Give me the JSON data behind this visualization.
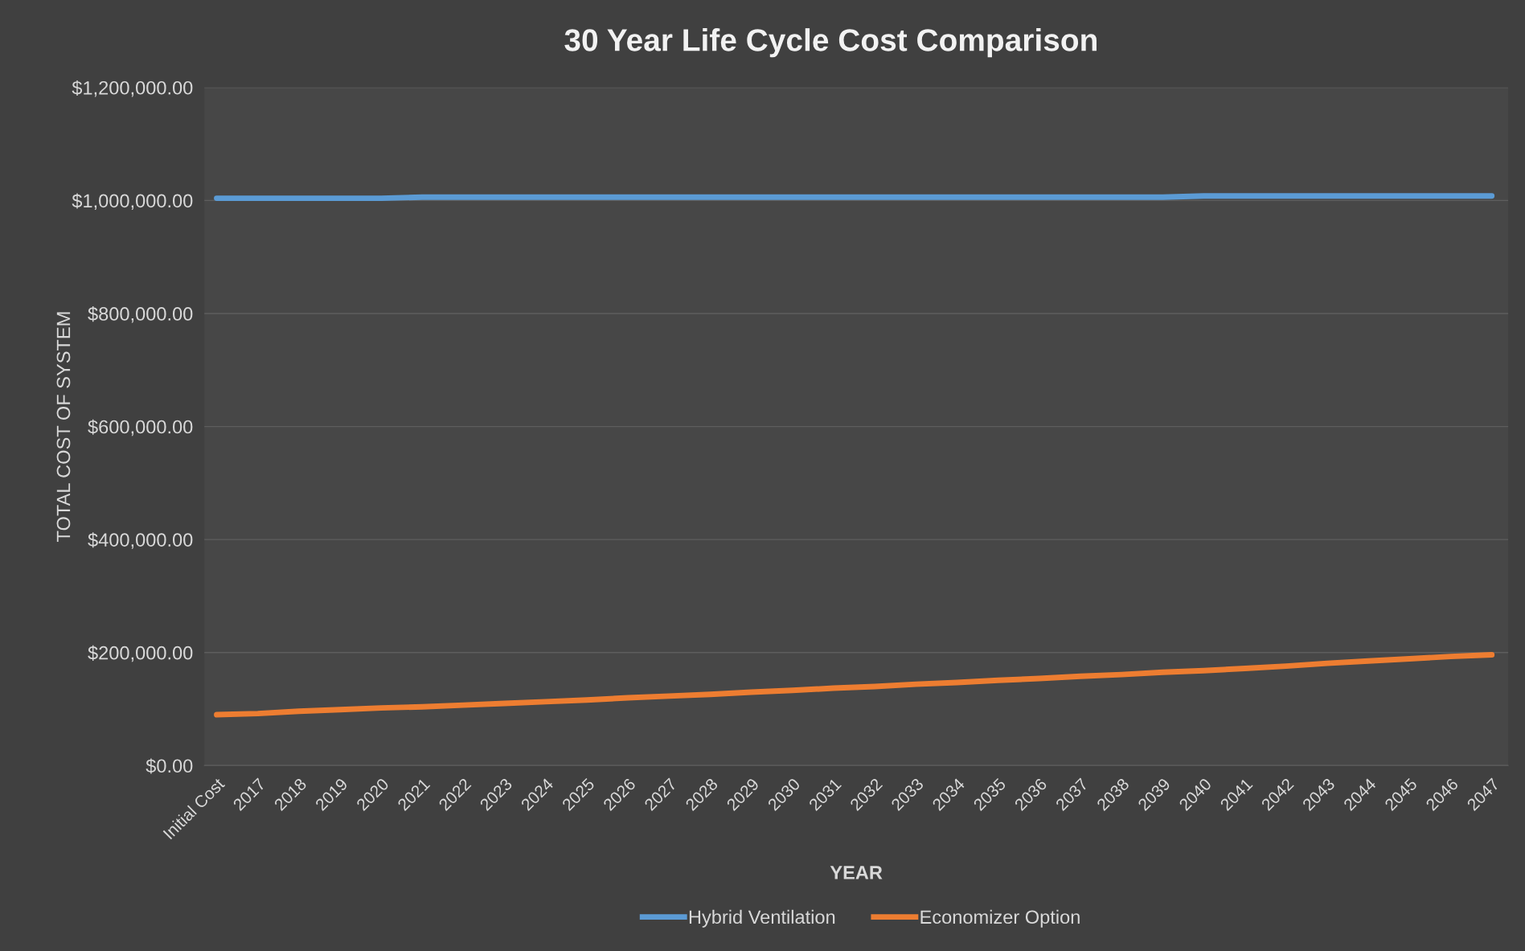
{
  "chart_data": {
    "type": "line",
    "title": "30 Year Life Cycle Cost Comparison",
    "xlabel": "YEAR",
    "ylabel": "TOTAL COST OF SYSTEM",
    "categories": [
      "Initial Cost",
      "2017",
      "2018",
      "2019",
      "2020",
      "2021",
      "2022",
      "2023",
      "2024",
      "2025",
      "2026",
      "2027",
      "2028",
      "2029",
      "2030",
      "2031",
      "2032",
      "2033",
      "2034",
      "2035",
      "2036",
      "2037",
      "2038",
      "2039",
      "2040",
      "2041",
      "2042",
      "2043",
      "2044",
      "2045",
      "2046",
      "2047"
    ],
    "series": [
      {
        "name": "Hybrid Ventilation",
        "color": "#5b9bd5",
        "values": [
          1004000,
          1004000,
          1004000,
          1004000,
          1004000,
          1006000,
          1006000,
          1006000,
          1006000,
          1006000,
          1006000,
          1006000,
          1006000,
          1006000,
          1006000,
          1006000,
          1006000,
          1006000,
          1006000,
          1006000,
          1006000,
          1006000,
          1006000,
          1006000,
          1008000,
          1008000,
          1008000,
          1008000,
          1008000,
          1008000,
          1008000,
          1008000
        ]
      },
      {
        "name": "Economizer Option",
        "color": "#ed7d31",
        "values": [
          90000,
          92000,
          96000,
          99000,
          102000,
          104000,
          107000,
          110000,
          113000,
          116000,
          120000,
          123000,
          126000,
          130000,
          133000,
          137000,
          140000,
          144000,
          147000,
          151000,
          154000,
          158000,
          161000,
          165000,
          168000,
          172000,
          176000,
          181000,
          185000,
          189000,
          193000,
          196000
        ]
      }
    ],
    "ylim": [
      0,
      1200000
    ],
    "yticks": [
      {
        "value": 0,
        "label": "$0.00"
      },
      {
        "value": 200000,
        "label": "$200,000.00"
      },
      {
        "value": 400000,
        "label": "$400,000.00"
      },
      {
        "value": 600000,
        "label": "$600,000.00"
      },
      {
        "value": 800000,
        "label": "$800,000.00"
      },
      {
        "value": 1000000,
        "label": "$1,000,000.00"
      },
      {
        "value": 1200000,
        "label": "$1,200,000.00"
      }
    ],
    "grid": "y",
    "legend": "bottom",
    "marker": "none",
    "line_style": "solid"
  }
}
